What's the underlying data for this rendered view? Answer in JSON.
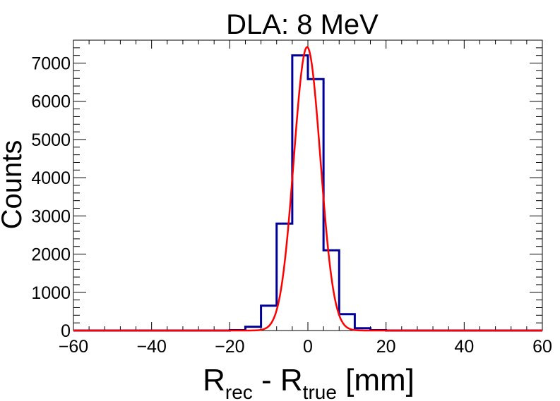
{
  "chart_data": {
    "type": "histogram",
    "title": "DLA: 8 MeV",
    "xlabel": {
      "main1": "R",
      "sub1": "rec",
      "mid": " - R",
      "sub2": "true",
      "unit": " [mm]"
    },
    "ylabel": "Counts",
    "xlim": [
      -60,
      60
    ],
    "ylim": [
      0,
      7600
    ],
    "xticks": [
      -60,
      -40,
      -20,
      0,
      20,
      40,
      60
    ],
    "xtick_labels": [
      "−60",
      "−40",
      "−20",
      "0",
      "20",
      "40",
      "60"
    ],
    "yticks": [
      0,
      1000,
      2000,
      3000,
      4000,
      5000,
      6000,
      7000
    ],
    "ytick_labels": [
      "0",
      "1000",
      "2000",
      "3000",
      "4000",
      "5000",
      "6000",
      "7000"
    ],
    "bin_edges": [
      -60,
      -56,
      -52,
      -48,
      -44,
      -40,
      -36,
      -32,
      -28,
      -24,
      -20,
      -16,
      -12,
      -8,
      -4,
      0,
      4,
      8,
      12,
      16,
      20,
      24,
      28,
      32,
      36,
      40,
      44,
      48,
      52,
      56,
      60
    ],
    "counts": [
      0,
      0,
      0,
      0,
      0,
      0,
      0,
      0,
      0,
      0,
      10,
      100,
      650,
      2800,
      7200,
      6580,
      2100,
      430,
      60,
      10,
      0,
      0,
      0,
      0,
      0,
      0,
      0,
      0,
      0,
      0
    ],
    "fit": {
      "type": "gaussian",
      "amplitude": 7420,
      "mean": -0.2,
      "sigma": 3.4
    },
    "colors": {
      "histogram": "#000099",
      "fit": "#ff0000",
      "axes": "#000000"
    }
  }
}
